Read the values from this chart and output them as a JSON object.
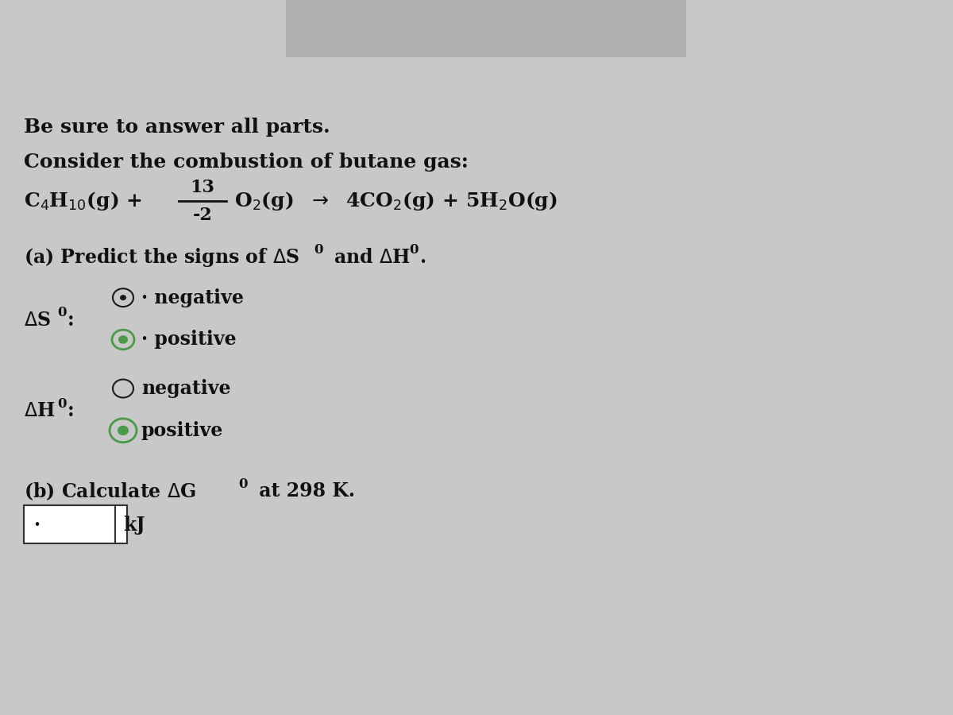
{
  "background_color": "#c8c8c8",
  "title_line1": "Be sure to answer all parts.",
  "title_line2": "Consider the combustion of butane gas:",
  "equation_numerator": "13",
  "equation_denominator": "-2",
  "option_negative": "negative",
  "option_positive": "positive",
  "kj_label": "kJ",
  "radio_circle_color": "#1a1a1a",
  "radio_selected_color": "#4a9a4a",
  "text_color": "#111111",
  "font_size_title": 18,
  "font_size_equation": 18,
  "font_size_body": 17
}
